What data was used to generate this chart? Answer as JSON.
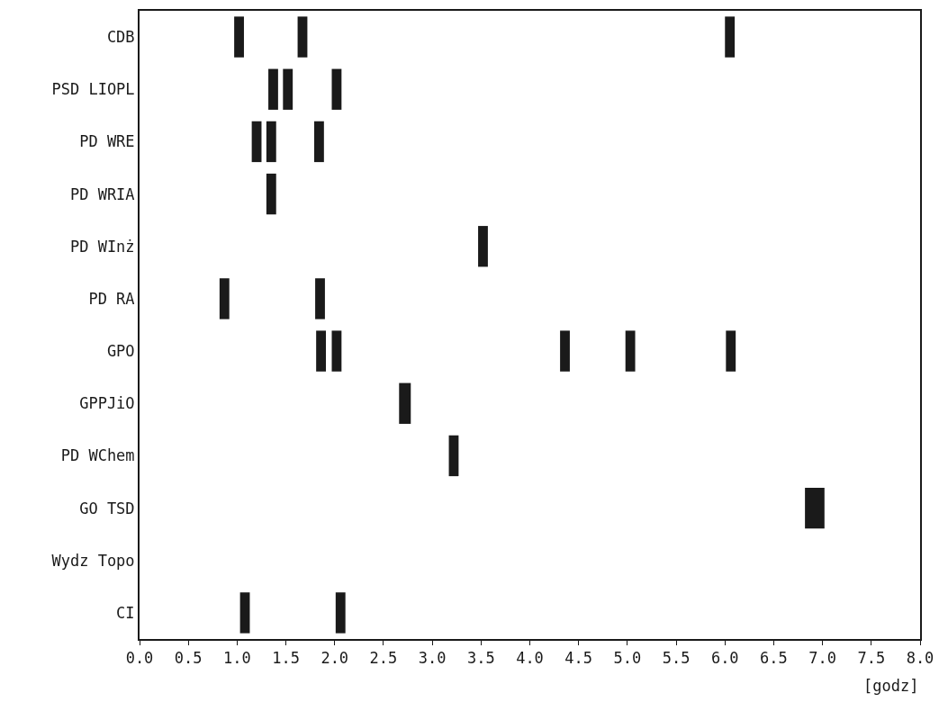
{
  "chart_data": {
    "type": "bar",
    "orientation": "horizontal",
    "xlabel": "[godz]",
    "categories": [
      "CDB",
      "PSD LIOPL",
      "PD WRE",
      "PD WRIA",
      "PD WInż",
      "PD RA",
      "GPO",
      "GPPJiO",
      "PD WChem",
      "GO TSD",
      "Wydz Topo",
      "CI"
    ],
    "series": [
      {
        "color": "#1a1a1a",
        "base": [
          0.97,
          1.32,
          1.15,
          1.3,
          3.47,
          0.82,
          1.81,
          2.66,
          3.17,
          6.82,
          null,
          1.03
        ],
        "values": [
          0.1,
          0.1,
          0.1,
          0.1,
          0.1,
          0.1,
          0.1,
          0.12,
          0.1,
          0.2,
          null,
          0.1
        ]
      },
      {
        "color": "#1a1a1a",
        "base": [
          1.62,
          1.47,
          1.3,
          null,
          null,
          1.8,
          1.97,
          null,
          null,
          null,
          null,
          2.01
        ],
        "values": [
          0.1,
          0.1,
          0.1,
          null,
          null,
          0.1,
          0.1,
          null,
          null,
          null,
          null,
          0.1
        ]
      },
      {
        "color": "#1a1a1a",
        "base": [
          6.0,
          1.97,
          1.79,
          null,
          null,
          null,
          4.31,
          null,
          null,
          null,
          null,
          null
        ],
        "values": [
          0.1,
          0.1,
          0.1,
          null,
          null,
          null,
          0.1,
          null,
          null,
          null,
          null,
          null
        ]
      },
      {
        "color": "#1a1a1a",
        "base": [
          null,
          null,
          null,
          null,
          null,
          null,
          4.98,
          null,
          null,
          null,
          null,
          null
        ],
        "values": [
          null,
          null,
          null,
          null,
          null,
          null,
          0.1,
          null,
          null,
          null,
          null,
          null
        ]
      },
      {
        "color": "#1a1a1a",
        "base": [
          null,
          null,
          null,
          null,
          null,
          null,
          6.01,
          null,
          null,
          null,
          null,
          null
        ],
        "values": [
          null,
          null,
          null,
          null,
          null,
          null,
          0.1,
          null,
          null,
          null,
          null,
          null
        ]
      }
    ],
    "xlim": [
      0,
      8
    ],
    "xticks": [
      {
        "value": 0,
        "label": "0.0"
      },
      {
        "value": 0.5,
        "label": "0.5"
      },
      {
        "value": 1,
        "label": "1.0"
      },
      {
        "value": 1.5,
        "label": "1.5"
      },
      {
        "value": 2,
        "label": "2.0"
      },
      {
        "value": 2.5,
        "label": "2.5"
      },
      {
        "value": 3,
        "label": "3.0"
      },
      {
        "value": 3.5,
        "label": "3.5"
      },
      {
        "value": 4,
        "label": "4.0"
      },
      {
        "value": 4.5,
        "label": "4.5"
      },
      {
        "value": 5,
        "label": "5.0"
      },
      {
        "value": 5.5,
        "label": "5.5"
      },
      {
        "value": 6,
        "label": "6.0"
      },
      {
        "value": 6.5,
        "label": "6.5"
      },
      {
        "value": 7,
        "label": "7.0"
      },
      {
        "value": 7.5,
        "label": "7.5"
      },
      {
        "value": 8,
        "label": "8.0"
      }
    ]
  }
}
